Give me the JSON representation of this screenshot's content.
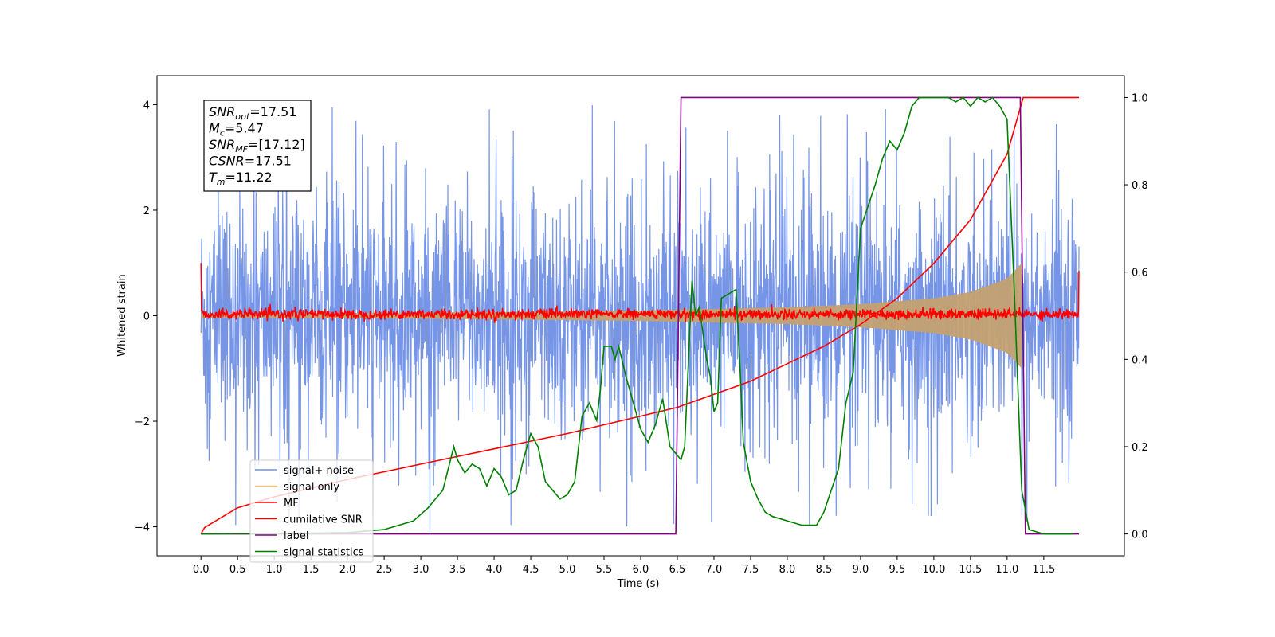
{
  "chart_data": {
    "type": "line",
    "xlabel": "Time (s)",
    "ylabel": "Whitened strain",
    "xlim": [
      -0.6,
      12.6
    ],
    "ylim": [
      -4.55,
      4.55
    ],
    "y2lim": [
      -0.05,
      1.05
    ],
    "x_ticks": [
      "0.0",
      "0.5",
      "1.0",
      "1.5",
      "2.0",
      "2.5",
      "3.0",
      "3.5",
      "4.0",
      "4.5",
      "5.0",
      "5.5",
      "6.0",
      "6.5",
      "7.0",
      "7.5",
      "8.0",
      "8.5",
      "9.0",
      "9.5",
      "10.0",
      "10.5",
      "11.0",
      "11.5"
    ],
    "y_ticks": [
      "4",
      "2",
      "0",
      "−2",
      "−4"
    ],
    "y2_ticks": [
      "1.0",
      "0.8",
      "0.6",
      "0.4",
      "0.2",
      "0.0"
    ],
    "grid": false,
    "legend_position": "lower-left",
    "colors": {
      "signal_noise": "#6f8fe6",
      "signal_only": "#c4a070",
      "mf": "#ff0000",
      "cumulative_snr": "#ff0000",
      "label": "#800080",
      "signal_statistics": "#008000"
    },
    "series": [
      {
        "name": "signal+ noise",
        "axis": "left",
        "style": "noise band, amplitude ~2.3 with spikes to ~4",
        "x_range": [
          0.0,
          11.98
        ]
      },
      {
        "name": "signal only",
        "axis": "left",
        "style": "chirp envelope",
        "x": [
          0,
          2,
          4,
          6,
          8,
          9,
          10,
          10.5,
          11,
          11.1,
          11.2
        ],
        "amplitude": [
          0.04,
          0.05,
          0.07,
          0.1,
          0.16,
          0.22,
          0.33,
          0.45,
          0.7,
          0.85,
          1.0
        ]
      },
      {
        "name": "MF",
        "axis": "left",
        "style": "noisy line near 0 with spike to ~1 at both ends",
        "x_range": [
          0.0,
          11.98
        ]
      },
      {
        "name": "cumilative SNR",
        "axis": "right",
        "x": [
          0.0,
          0.05,
          0.5,
          1,
          2,
          3,
          4,
          5,
          6,
          6.5,
          7,
          7.5,
          8,
          8.5,
          9,
          9.5,
          10,
          10.5,
          11,
          11.22,
          11.98
        ],
        "y": [
          0.0,
          0.015,
          0.06,
          0.085,
          0.125,
          0.16,
          0.195,
          0.23,
          0.27,
          0.29,
          0.32,
          0.35,
          0.39,
          0.43,
          0.48,
          0.54,
          0.62,
          0.72,
          0.87,
          1.0,
          1.0
        ]
      },
      {
        "name": "label",
        "axis": "right",
        "x": [
          0.0,
          6.48,
          6.55,
          11.18,
          11.25,
          11.98
        ],
        "y": [
          0.0,
          0.0,
          1.0,
          1.0,
          0.0,
          0.0
        ]
      },
      {
        "name": "signal statistics",
        "axis": "right",
        "x": [
          0.0,
          0.5,
          1.0,
          1.5,
          2.0,
          2.5,
          2.7,
          2.9,
          3.1,
          3.3,
          3.45,
          3.5,
          3.6,
          3.7,
          3.8,
          3.9,
          4.0,
          4.1,
          4.2,
          4.3,
          4.4,
          4.5,
          4.6,
          4.7,
          4.8,
          4.9,
          5.0,
          5.1,
          5.2,
          5.3,
          5.4,
          5.45,
          5.5,
          5.6,
          5.65,
          5.7,
          5.8,
          5.9,
          6.0,
          6.1,
          6.2,
          6.3,
          6.4,
          6.5,
          6.55,
          6.6,
          6.7,
          6.75,
          6.8,
          6.9,
          6.95,
          7.0,
          7.05,
          7.1,
          7.2,
          7.3,
          7.35,
          7.4,
          7.5,
          7.6,
          7.7,
          7.8,
          8.0,
          8.2,
          8.4,
          8.5,
          8.6,
          8.7,
          8.8,
          8.9,
          9.0,
          9.1,
          9.2,
          9.3,
          9.4,
          9.5,
          9.6,
          9.7,
          9.8,
          9.9,
          10.0,
          10.2,
          10.3,
          10.4,
          10.5,
          10.6,
          10.7,
          10.8,
          10.9,
          11.0,
          11.1,
          11.2,
          11.3,
          11.5,
          11.9
        ],
        "y": [
          0.0,
          0.001,
          0.001,
          0.002,
          0.003,
          0.01,
          0.02,
          0.03,
          0.06,
          0.1,
          0.2,
          0.17,
          0.14,
          0.16,
          0.15,
          0.11,
          0.15,
          0.13,
          0.09,
          0.1,
          0.17,
          0.23,
          0.2,
          0.12,
          0.1,
          0.08,
          0.09,
          0.12,
          0.27,
          0.3,
          0.26,
          0.33,
          0.43,
          0.43,
          0.4,
          0.43,
          0.36,
          0.3,
          0.24,
          0.21,
          0.25,
          0.31,
          0.2,
          0.18,
          0.17,
          0.2,
          0.58,
          0.5,
          0.52,
          0.4,
          0.36,
          0.28,
          0.3,
          0.54,
          0.55,
          0.56,
          0.4,
          0.21,
          0.12,
          0.08,
          0.05,
          0.04,
          0.03,
          0.02,
          0.02,
          0.05,
          0.1,
          0.15,
          0.3,
          0.37,
          0.7,
          0.75,
          0.8,
          0.86,
          0.9,
          0.88,
          0.92,
          0.98,
          1.0,
          1.0,
          1.0,
          1.0,
          0.99,
          1.0,
          0.98,
          1.0,
          0.99,
          1.0,
          0.98,
          0.95,
          0.55,
          0.1,
          0.01,
          0.0,
          0.0
        ]
      }
    ]
  },
  "info_box": [
    {
      "var": "SNR",
      "sub": "opt",
      "value": "=17.51"
    },
    {
      "var": "M",
      "sub": "c",
      "value": "=5.47"
    },
    {
      "var": "SNR",
      "sub": "MF",
      "value": "=[17.12]"
    },
    {
      "var": "CSNR",
      "sub": "",
      "value": "=17.51"
    },
    {
      "var": "T",
      "sub": "m",
      "value": "=11.22"
    }
  ]
}
